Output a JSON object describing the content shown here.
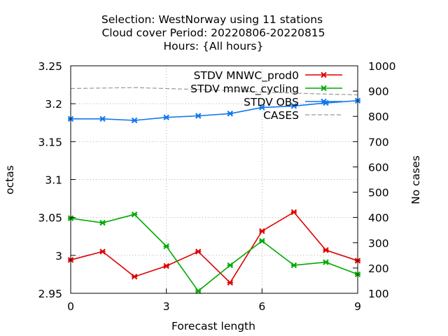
{
  "chart_data": {
    "type": "line",
    "title_lines": [
      "Selection: WestNorway using    11 stations",
      "Cloud cover   Period: 20220806-20220815",
      "Hours: {All hours}"
    ],
    "xlabel": "Forecast length",
    "ylabel": "octas",
    "y2label": "No cases",
    "xlim": [
      0,
      9
    ],
    "ylim": [
      2.95,
      3.25
    ],
    "y2lim": [
      100,
      1000
    ],
    "xticks": [
      0,
      3,
      6,
      9
    ],
    "yticks": [
      2.95,
      3.0,
      3.05,
      3.1,
      3.15,
      3.2,
      3.25
    ],
    "ytick_labels": [
      "2.95",
      "3",
      "3.05",
      "3.1",
      "3.15",
      "3.2",
      "3.25"
    ],
    "y2ticks": [
      100,
      200,
      300,
      400,
      500,
      600,
      700,
      800,
      900,
      1000
    ],
    "grid": true,
    "legend_position": "top-right",
    "series": [
      {
        "name": "STDV MNWC_prod0",
        "color": "#dd0000",
        "marker": "x",
        "axis": "y",
        "x": [
          0,
          1,
          2,
          3,
          4,
          5,
          6,
          7,
          8,
          9
        ],
        "values": [
          2.994,
          3.005,
          2.972,
          2.986,
          3.005,
          2.964,
          3.032,
          3.057,
          3.007,
          2.993
        ]
      },
      {
        "name": "STDV mnwc_cycling",
        "color": "#00aa00",
        "marker": "x",
        "axis": "y",
        "x": [
          0,
          1,
          2,
          3,
          4,
          5,
          6,
          7,
          8,
          9
        ],
        "values": [
          3.049,
          3.043,
          3.054,
          3.012,
          2.953,
          2.987,
          3.019,
          2.987,
          2.991,
          2.975
        ]
      },
      {
        "name": "STDV OBS",
        "color": "#1177ee",
        "marker": "x",
        "axis": "y",
        "x": [
          0,
          1,
          2,
          3,
          4,
          5,
          6,
          7,
          8,
          9
        ],
        "values": [
          3.18,
          3.18,
          3.178,
          3.182,
          3.184,
          3.187,
          3.195,
          3.197,
          3.201,
          3.204
        ]
      },
      {
        "name": "CASES",
        "color": "#999999",
        "dashed": true,
        "axis": "y2",
        "x": [
          0,
          1,
          2,
          3,
          4,
          5,
          6,
          7,
          8,
          9
        ],
        "values": [
          910,
          912,
          914,
          910,
          906,
          902,
          896,
          892,
          888,
          885
        ]
      }
    ]
  }
}
